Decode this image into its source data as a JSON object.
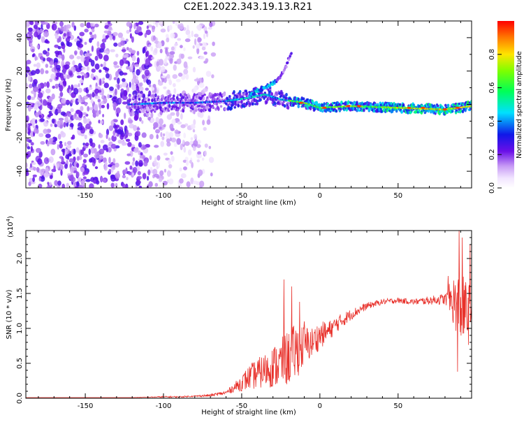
{
  "title": "C2E1.2022.343.19.13.R21",
  "chart_data": [
    {
      "type": "heatmap",
      "xlabel": "Height of straight line (km)",
      "ylabel": "Frequency (Hz)",
      "xlim": [
        -188,
        97
      ],
      "ylim": [
        -50,
        50
      ],
      "xticks": [
        "-150",
        "-100",
        "-50",
        "0",
        "50"
      ],
      "xtick_values": [
        -150,
        -100,
        -50,
        0,
        50
      ],
      "yticks": [
        "-40",
        "-20",
        "0",
        "20",
        "40"
      ],
      "ytick_values": [
        -40,
        -20,
        0,
        20,
        40
      ],
      "colorbar": {
        "label": "Normalized spectral amplitude",
        "range": [
          0,
          1
        ],
        "ticks": [
          "0.0",
          "0.2",
          "0.4",
          "0.6",
          "0.8"
        ],
        "tick_values": [
          0,
          0.2,
          0.4,
          0.6,
          0.8
        ]
      },
      "band_centerline": {
        "x": [
          -120,
          -100,
          -80,
          -60,
          -45,
          -35,
          -25,
          -10,
          0,
          20,
          50,
          80,
          97
        ],
        "frequency": [
          0,
          1,
          1,
          2,
          4,
          6,
          3,
          1,
          -2,
          -1,
          -2,
          -3,
          -1
        ]
      },
      "diagonal_branch": {
        "x": [
          -45,
          -35,
          -28,
          -25,
          -22,
          -18
        ],
        "frequency": [
          6,
          10,
          14,
          17,
          22,
          32
        ]
      },
      "noise_region": {
        "x": [
          -188,
          -68
        ],
        "frequency": [
          -50,
          50
        ]
      }
    },
    {
      "type": "line",
      "xlabel": "Height of straight line (km)",
      "ylabel": "SNR (10 * v/v)",
      "exponent_label": "(x10",
      "exponent_power": "4",
      "exponent_close": ")",
      "xlim": [
        -188,
        97
      ],
      "ylim": [
        0,
        2.4
      ],
      "xticks": [
        "-150",
        "-100",
        "-50",
        "0",
        "50"
      ],
      "xtick_values": [
        -150,
        -100,
        -50,
        0,
        50
      ],
      "yticks": [
        "0.0",
        "0.5",
        "1.0",
        "1.5",
        "2.0"
      ],
      "ytick_values": [
        0,
        0.5,
        1.0,
        1.5,
        2.0
      ],
      "color": "#e8302a",
      "series": [
        {
          "x": [
            -188,
            -150,
            -120,
            -100,
            -90,
            -80,
            -70,
            -60,
            -55,
            -50,
            -45,
            -40,
            -35,
            -30,
            -25,
            -20,
            -15,
            -10,
            -5,
            0,
            5,
            10,
            20,
            30,
            40,
            50,
            60,
            70,
            80,
            85,
            90,
            95,
            97
          ],
          "values": [
            0.01,
            0.01,
            0.01,
            0.02,
            0.02,
            0.03,
            0.04,
            0.08,
            0.15,
            0.22,
            0.3,
            0.35,
            0.4,
            0.45,
            0.5,
            0.58,
            0.68,
            0.75,
            0.8,
            0.9,
            0.95,
            1.05,
            1.2,
            1.32,
            1.38,
            1.4,
            1.38,
            1.4,
            1.42,
            1.4,
            1.3,
            1.2,
            1.3
          ],
          "noise": [
            0,
            0,
            0,
            0.01,
            0.01,
            0.01,
            0.02,
            0.03,
            0.06,
            0.12,
            0.18,
            0.22,
            0.25,
            0.3,
            0.35,
            0.4,
            0.4,
            0.3,
            0.22,
            0.2,
            0.15,
            0.12,
            0.08,
            0.05,
            0.04,
            0.04,
            0.04,
            0.06,
            0.08,
            0.35,
            0.5,
            0.45,
            0.4
          ]
        }
      ],
      "spikes": [
        {
          "x": -23,
          "y": 1.7
        },
        {
          "x": -18,
          "y": 1.6
        },
        {
          "x": -13,
          "y": 1.38
        },
        {
          "x": -10,
          "y": 1.1
        },
        {
          "x": 82,
          "y": 1.75
        },
        {
          "x": 89,
          "y": 2.4
        },
        {
          "x": 91,
          "y": 2.3
        },
        {
          "x": 96,
          "y": 2.2
        },
        {
          "x": 88,
          "y": 0.38
        }
      ]
    }
  ]
}
